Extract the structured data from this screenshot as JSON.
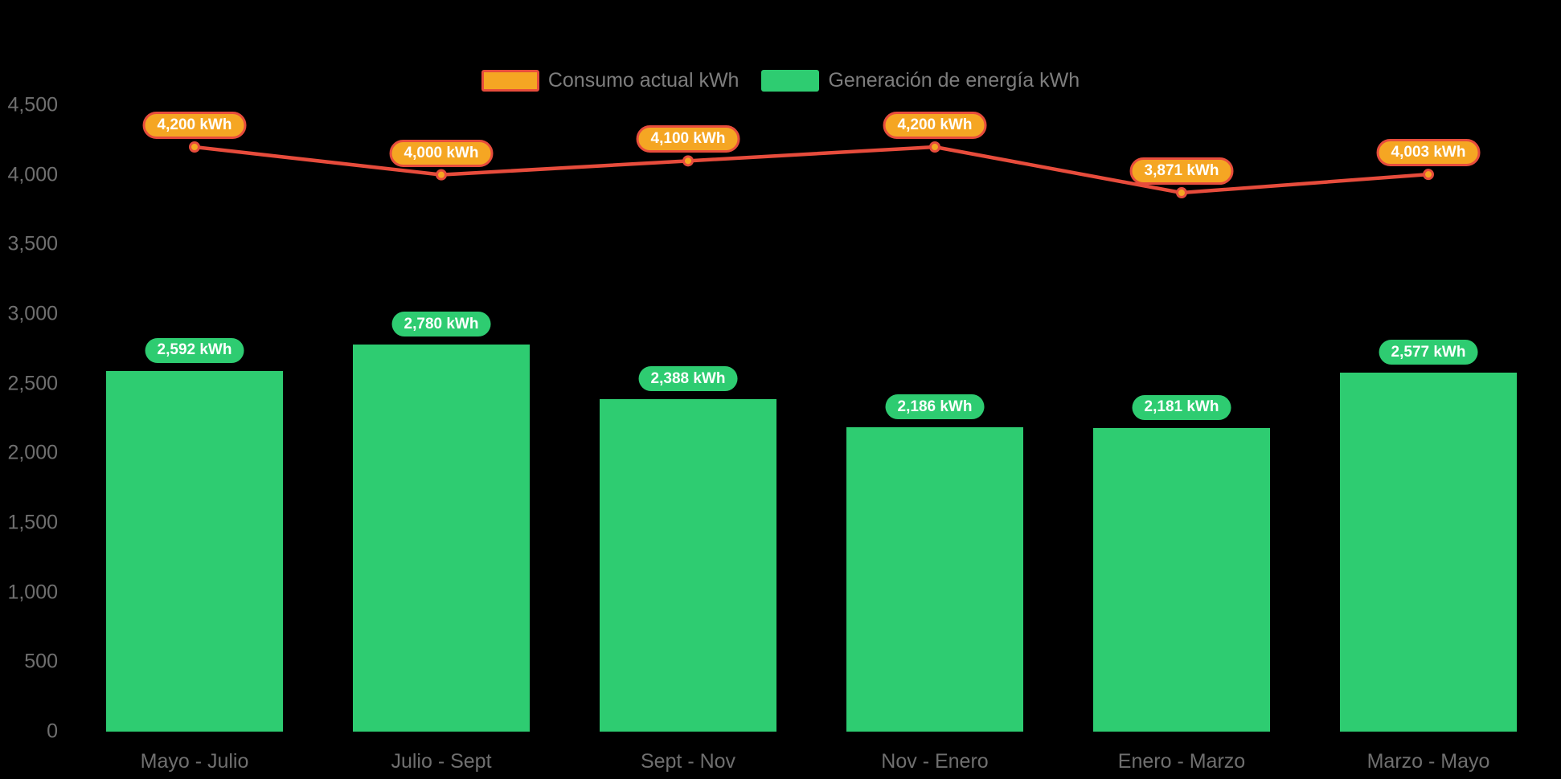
{
  "chart_data": {
    "type": "combo",
    "title": "",
    "categories": [
      "Mayo - Julio",
      "Julio - Sept",
      "Sept - Nov",
      "Nov - Enero",
      "Enero - Marzo",
      "Marzo - Mayo"
    ],
    "series": [
      {
        "name": "Consumo actual kWh",
        "type": "line",
        "values": [
          4200,
          4000,
          4100,
          4200,
          3871,
          4003
        ],
        "labels": [
          "4,200 kWh",
          "4,000 kWh",
          "4,100 kWh",
          "4,200 kWh",
          "3,871 kWh",
          "4,003 kWh"
        ],
        "line_color": "#e74c3c",
        "point_color": "#f5a623",
        "label_bg": "#f5a623",
        "label_border": "#e74c3c",
        "swatch_fill": "#f5a623",
        "swatch_border": "#e74c3c"
      },
      {
        "name": "Generación de energía kWh",
        "type": "bar",
        "values": [
          2592,
          2780,
          2388,
          2186,
          2181,
          2577
        ],
        "labels": [
          "2,592 kWh",
          "2,780 kWh",
          "2,388 kWh",
          "2,186 kWh",
          "2,181 kWh",
          "2,577 kWh"
        ],
        "bar_color": "#2ecc71",
        "label_bg": "#2ecc71",
        "swatch_fill": "#2ecc71"
      }
    ],
    "y_ticks": [
      "4,500",
      "4,000",
      "3,500",
      "3,000",
      "2,500",
      "2,000",
      "1,500",
      "1,000",
      "500",
      "0"
    ],
    "y_tick_step": 500,
    "ylim": [
      0,
      4500
    ],
    "grid": false,
    "legend_position": "top",
    "background": "#000000",
    "axis_text_color": "#6f6f6f",
    "legend_text_color": "#7d7d7d",
    "label_text_color": "#ffffff"
  }
}
